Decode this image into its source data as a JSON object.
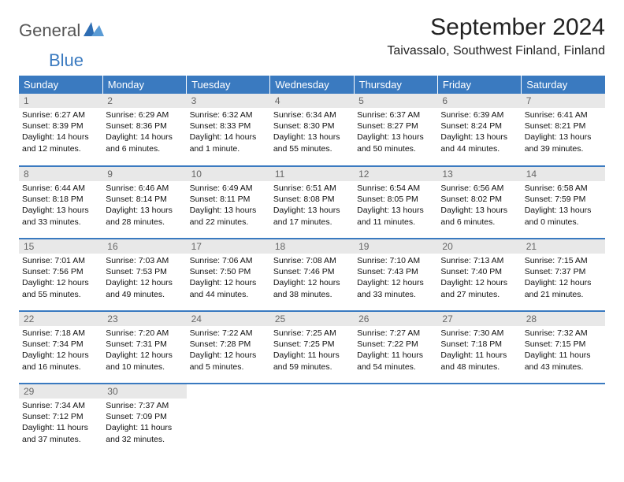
{
  "brand": {
    "part1": "General",
    "part2": "Blue"
  },
  "title": "September 2024",
  "location": "Taivassalo, Southwest Finland, Finland",
  "colors": {
    "accent": "#3a7ac0",
    "daynum_bg": "#e8e8e8",
    "daynum_fg": "#666666",
    "text": "#111111",
    "bg": "#ffffff"
  },
  "dayNames": [
    "Sunday",
    "Monday",
    "Tuesday",
    "Wednesday",
    "Thursday",
    "Friday",
    "Saturday"
  ],
  "weeks": [
    [
      {
        "n": "1",
        "sr": "6:27 AM",
        "ss": "8:39 PM",
        "dl": "14 hours and 12 minutes."
      },
      {
        "n": "2",
        "sr": "6:29 AM",
        "ss": "8:36 PM",
        "dl": "14 hours and 6 minutes."
      },
      {
        "n": "3",
        "sr": "6:32 AM",
        "ss": "8:33 PM",
        "dl": "14 hours and 1 minute."
      },
      {
        "n": "4",
        "sr": "6:34 AM",
        "ss": "8:30 PM",
        "dl": "13 hours and 55 minutes."
      },
      {
        "n": "5",
        "sr": "6:37 AM",
        "ss": "8:27 PM",
        "dl": "13 hours and 50 minutes."
      },
      {
        "n": "6",
        "sr": "6:39 AM",
        "ss": "8:24 PM",
        "dl": "13 hours and 44 minutes."
      },
      {
        "n": "7",
        "sr": "6:41 AM",
        "ss": "8:21 PM",
        "dl": "13 hours and 39 minutes."
      }
    ],
    [
      {
        "n": "8",
        "sr": "6:44 AM",
        "ss": "8:18 PM",
        "dl": "13 hours and 33 minutes."
      },
      {
        "n": "9",
        "sr": "6:46 AM",
        "ss": "8:14 PM",
        "dl": "13 hours and 28 minutes."
      },
      {
        "n": "10",
        "sr": "6:49 AM",
        "ss": "8:11 PM",
        "dl": "13 hours and 22 minutes."
      },
      {
        "n": "11",
        "sr": "6:51 AM",
        "ss": "8:08 PM",
        "dl": "13 hours and 17 minutes."
      },
      {
        "n": "12",
        "sr": "6:54 AM",
        "ss": "8:05 PM",
        "dl": "13 hours and 11 minutes."
      },
      {
        "n": "13",
        "sr": "6:56 AM",
        "ss": "8:02 PM",
        "dl": "13 hours and 6 minutes."
      },
      {
        "n": "14",
        "sr": "6:58 AM",
        "ss": "7:59 PM",
        "dl": "13 hours and 0 minutes."
      }
    ],
    [
      {
        "n": "15",
        "sr": "7:01 AM",
        "ss": "7:56 PM",
        "dl": "12 hours and 55 minutes."
      },
      {
        "n": "16",
        "sr": "7:03 AM",
        "ss": "7:53 PM",
        "dl": "12 hours and 49 minutes."
      },
      {
        "n": "17",
        "sr": "7:06 AM",
        "ss": "7:50 PM",
        "dl": "12 hours and 44 minutes."
      },
      {
        "n": "18",
        "sr": "7:08 AM",
        "ss": "7:46 PM",
        "dl": "12 hours and 38 minutes."
      },
      {
        "n": "19",
        "sr": "7:10 AM",
        "ss": "7:43 PM",
        "dl": "12 hours and 33 minutes."
      },
      {
        "n": "20",
        "sr": "7:13 AM",
        "ss": "7:40 PM",
        "dl": "12 hours and 27 minutes."
      },
      {
        "n": "21",
        "sr": "7:15 AM",
        "ss": "7:37 PM",
        "dl": "12 hours and 21 minutes."
      }
    ],
    [
      {
        "n": "22",
        "sr": "7:18 AM",
        "ss": "7:34 PM",
        "dl": "12 hours and 16 minutes."
      },
      {
        "n": "23",
        "sr": "7:20 AM",
        "ss": "7:31 PM",
        "dl": "12 hours and 10 minutes."
      },
      {
        "n": "24",
        "sr": "7:22 AM",
        "ss": "7:28 PM",
        "dl": "12 hours and 5 minutes."
      },
      {
        "n": "25",
        "sr": "7:25 AM",
        "ss": "7:25 PM",
        "dl": "11 hours and 59 minutes."
      },
      {
        "n": "26",
        "sr": "7:27 AM",
        "ss": "7:22 PM",
        "dl": "11 hours and 54 minutes."
      },
      {
        "n": "27",
        "sr": "7:30 AM",
        "ss": "7:18 PM",
        "dl": "11 hours and 48 minutes."
      },
      {
        "n": "28",
        "sr": "7:32 AM",
        "ss": "7:15 PM",
        "dl": "11 hours and 43 minutes."
      }
    ],
    [
      {
        "n": "29",
        "sr": "7:34 AM",
        "ss": "7:12 PM",
        "dl": "11 hours and 37 minutes."
      },
      {
        "n": "30",
        "sr": "7:37 AM",
        "ss": "7:09 PM",
        "dl": "11 hours and 32 minutes."
      },
      null,
      null,
      null,
      null,
      null
    ]
  ],
  "labels": {
    "sunrise": "Sunrise: ",
    "sunset": "Sunset: ",
    "daylight": "Daylight: "
  }
}
